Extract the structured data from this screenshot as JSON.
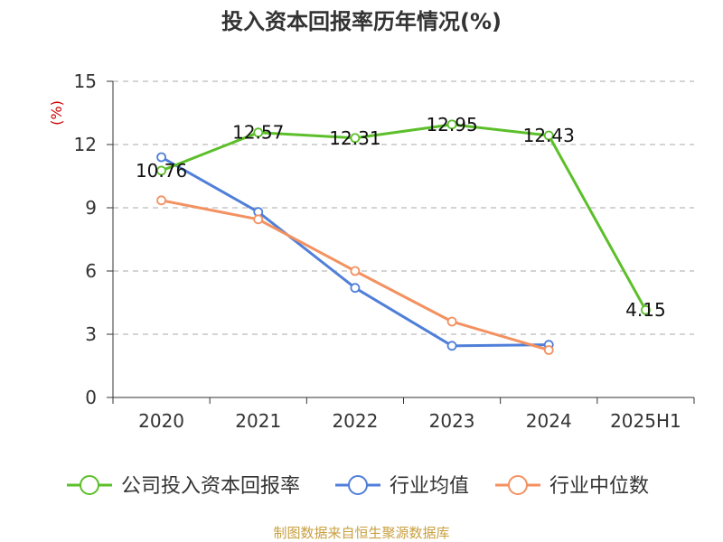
{
  "chart_data": {
    "type": "line",
    "title": "投入资本回报率历年情况(%)",
    "unit_label": "(%)",
    "categories": [
      "2020",
      "2021",
      "2022",
      "2023",
      "2024",
      "2025H1"
    ],
    "ylim": [
      0,
      15
    ],
    "yticks": [
      0,
      3,
      6,
      9,
      12,
      15
    ],
    "grid": true,
    "legend_position": "bottom",
    "series": [
      {
        "name": "公司投入资本回报率",
        "color": "#5cbf2a",
        "values": [
          10.76,
          12.57,
          12.31,
          12.95,
          12.43,
          4.15
        ],
        "labels": [
          "10.76",
          "12.57",
          "12.31",
          "12.95",
          "12.43",
          "4.15"
        ]
      },
      {
        "name": "行业均值",
        "color": "#4f7fd8",
        "values": [
          11.4,
          8.8,
          5.2,
          2.45,
          2.5,
          null
        ]
      },
      {
        "name": "行业中位数",
        "color": "#f39160",
        "values": [
          9.35,
          8.45,
          6.0,
          3.6,
          2.25,
          null
        ]
      }
    ],
    "source": "制图数据来自恒生聚源数据库"
  }
}
